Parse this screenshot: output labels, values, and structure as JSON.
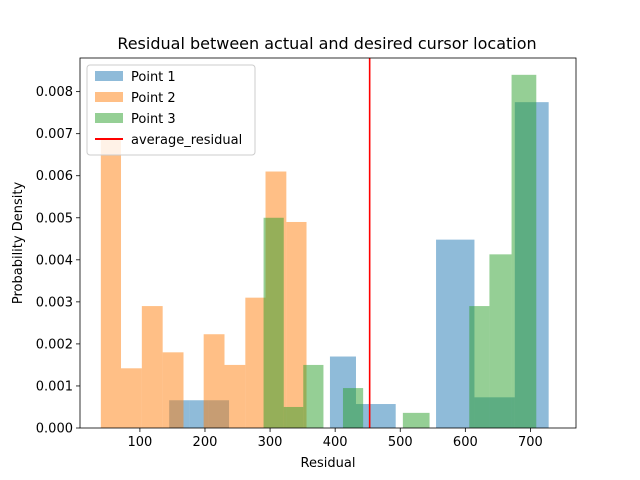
{
  "chart_data": {
    "type": "histogram",
    "title": "Residual between actual and desired cursor location",
    "xlabel": "Residual",
    "ylabel": "Probability Density",
    "xlim": [
      8,
      770
    ],
    "ylim": [
      0,
      0.0088
    ],
    "xticks": [
      100,
      200,
      300,
      400,
      500,
      600,
      700
    ],
    "yticks": [
      0.0,
      0.001,
      0.002,
      0.003,
      0.004,
      0.005,
      0.006,
      0.007,
      0.008
    ],
    "ytick_labels": [
      "0.000",
      "0.001",
      "0.002",
      "0.003",
      "0.004",
      "0.005",
      "0.006",
      "0.007",
      "0.008"
    ],
    "legend_position": "upper-left",
    "series": [
      {
        "name": "Point 1",
        "color": "#1f77b4",
        "bins": [
          {
            "x0": 145,
            "x1": 176,
            "y": 0.00066
          },
          {
            "x0": 176,
            "x1": 206,
            "y": 0.00066
          },
          {
            "x0": 206,
            "x1": 237,
            "y": 0.00066
          },
          {
            "x0": 237,
            "x1": 268,
            "y": 0.0
          },
          {
            "x0": 268,
            "x1": 299,
            "y": 0.0
          },
          {
            "x0": 299,
            "x1": 330,
            "y": 0.0
          },
          {
            "x0": 330,
            "x1": 361,
            "y": 0.0
          },
          {
            "x0": 361,
            "x1": 392,
            "y": 0.0
          },
          {
            "x0": 392,
            "x1": 432,
            "y": 0.0017
          },
          {
            "x0": 432,
            "x1": 462,
            "y": 0.00057
          },
          {
            "x0": 462,
            "x1": 493,
            "y": 0.00057
          },
          {
            "x0": 493,
            "x1": 524,
            "y": 0.0
          },
          {
            "x0": 524,
            "x1": 555,
            "y": 0.0
          },
          {
            "x0": 555,
            "x1": 614,
            "y": 0.00448
          },
          {
            "x0": 614,
            "x1": 676,
            "y": 0.00073
          },
          {
            "x0": 676,
            "x1": 728,
            "y": 0.00775
          }
        ]
      },
      {
        "name": "Point 2",
        "color": "#ff7f0e",
        "bins": [
          {
            "x0": 40,
            "x1": 71,
            "y": 0.0069
          },
          {
            "x0": 71,
            "x1": 103,
            "y": 0.00142
          },
          {
            "x0": 103,
            "x1": 135,
            "y": 0.0029
          },
          {
            "x0": 135,
            "x1": 167,
            "y": 0.0018
          },
          {
            "x0": 167,
            "x1": 198,
            "y": 0.0
          },
          {
            "x0": 198,
            "x1": 230,
            "y": 0.00223
          },
          {
            "x0": 230,
            "x1": 262,
            "y": 0.0015
          },
          {
            "x0": 262,
            "x1": 293,
            "y": 0.0031
          },
          {
            "x0": 293,
            "x1": 325,
            "y": 0.0061
          },
          {
            "x0": 325,
            "x1": 356,
            "y": 0.0049
          }
        ]
      },
      {
        "name": "Point 3",
        "color": "#2ca02c",
        "bins": [
          {
            "x0": 290,
            "x1": 321,
            "y": 0.005
          },
          {
            "x0": 321,
            "x1": 351,
            "y": 0.0005
          },
          {
            "x0": 351,
            "x1": 382,
            "y": 0.0015
          },
          {
            "x0": 382,
            "x1": 412,
            "y": 0.0
          },
          {
            "x0": 412,
            "x1": 443,
            "y": 0.00095
          },
          {
            "x0": 443,
            "x1": 474,
            "y": 0.0
          },
          {
            "x0": 474,
            "x1": 504,
            "y": 0.0
          },
          {
            "x0": 504,
            "x1": 545,
            "y": 0.00036
          },
          {
            "x0": 545,
            "x1": 576,
            "y": 0.0
          },
          {
            "x0": 576,
            "x1": 606,
            "y": 0.0
          },
          {
            "x0": 606,
            "x1": 637,
            "y": 0.0029
          },
          {
            "x0": 637,
            "x1": 671,
            "y": 0.00413
          },
          {
            "x0": 671,
            "x1": 709,
            "y": 0.0084
          }
        ]
      }
    ],
    "vline": {
      "name": "average_residual",
      "x": 453,
      "color": "#ff0000"
    }
  }
}
